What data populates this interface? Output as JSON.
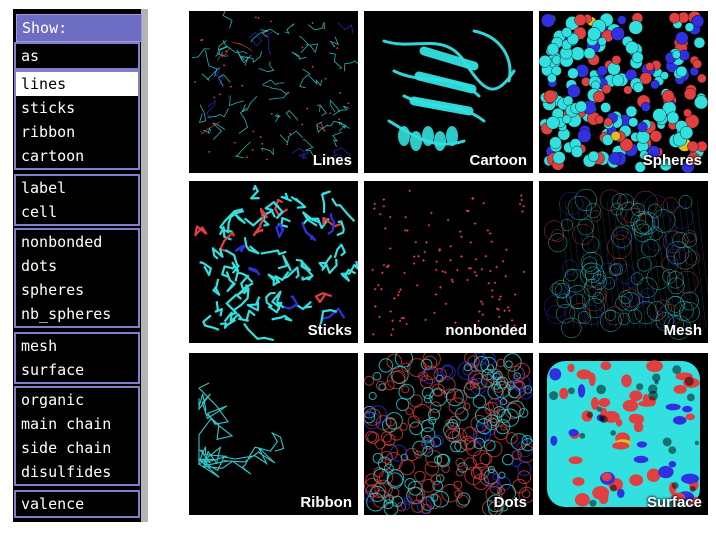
{
  "menu": {
    "title": "Show:",
    "groups": [
      {
        "items": [
          {
            "label": "as"
          }
        ]
      },
      {
        "items": [
          {
            "label": "lines",
            "selected": true
          },
          {
            "label": "sticks"
          },
          {
            "label": "ribbon"
          },
          {
            "label": "cartoon"
          }
        ]
      },
      {
        "items": [
          {
            "label": "label"
          },
          {
            "label": "cell"
          }
        ]
      },
      {
        "items": [
          {
            "label": "nonbonded"
          },
          {
            "label": "dots"
          },
          {
            "label": "spheres"
          },
          {
            "label": "nb_spheres"
          }
        ]
      },
      {
        "items": [
          {
            "label": "mesh"
          },
          {
            "label": "surface"
          }
        ]
      },
      {
        "items": [
          {
            "label": "organic"
          },
          {
            "label": "main chain"
          },
          {
            "label": "side chain"
          },
          {
            "label": "disulfides"
          }
        ]
      },
      {
        "items": [
          {
            "label": "valence"
          }
        ]
      }
    ]
  },
  "gallery": {
    "colors": {
      "background": "#000000",
      "carbon": "#33e0e0",
      "oxygen": "#e04040",
      "nitrogen": "#3030e0",
      "sulfur": "#e0c020"
    },
    "panels": [
      {
        "caption": "Lines",
        "style": "lines"
      },
      {
        "caption": "Cartoon",
        "style": "cartoon"
      },
      {
        "caption": "Spheres",
        "style": "spheres"
      },
      {
        "caption": "Sticks",
        "style": "sticks"
      },
      {
        "caption": "nonbonded",
        "style": "nonbonded"
      },
      {
        "caption": "Mesh",
        "style": "mesh"
      },
      {
        "caption": "Ribbon",
        "style": "ribbon"
      },
      {
        "caption": "Dots",
        "style": "dots"
      },
      {
        "caption": "Surface",
        "style": "surface"
      }
    ]
  }
}
